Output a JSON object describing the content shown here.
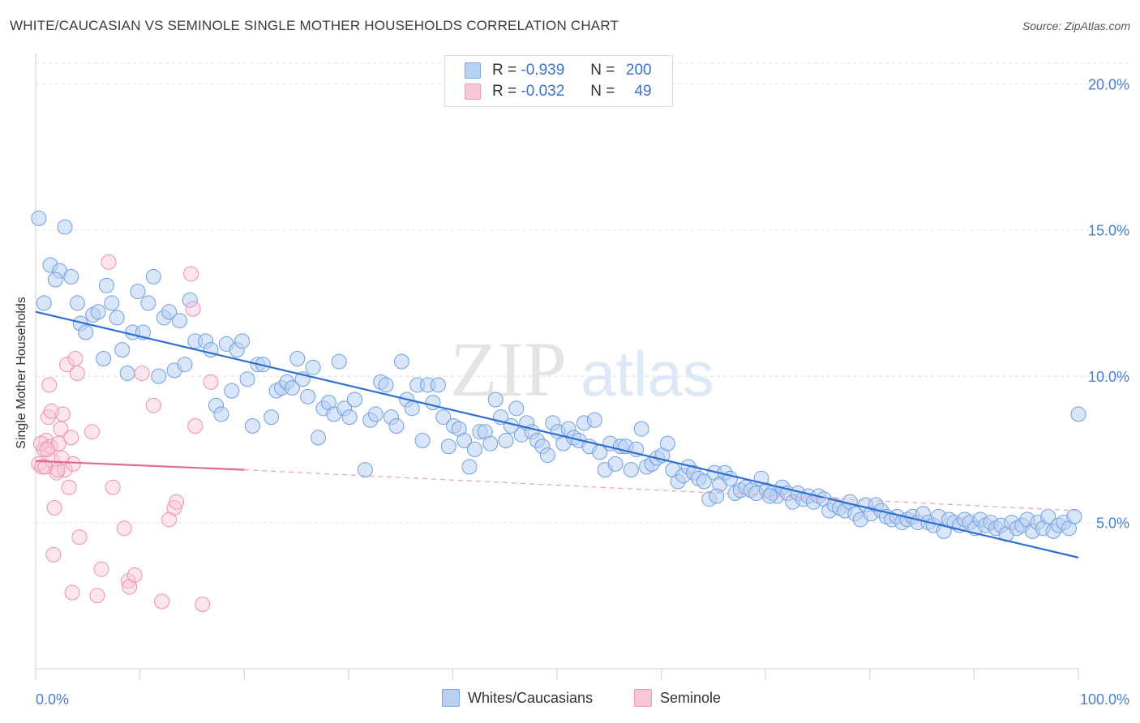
{
  "title": "WHITE/CAUCASIAN VS SEMINOLE SINGLE MOTHER HOUSEHOLDS CORRELATION CHART",
  "source": "Source: ZipAtlas.com",
  "watermark": {
    "part1": "ZIP",
    "part2": "atlas"
  },
  "legend": {
    "rows": [
      {
        "r_label": "R =",
        "r_value": "-0.939",
        "n_label": "N =",
        "n_value": "200",
        "color": "#a9c6f0"
      },
      {
        "r_label": "R =",
        "r_value": "-0.032",
        "n_label": "N =",
        "n_value": "49",
        "color": "#f6b8cc"
      }
    ]
  },
  "bottom_legend": [
    {
      "label": "Whites/Caucasians",
      "color": "#b9d0f2"
    },
    {
      "label": "Seminole",
      "color": "#f8c6d6"
    }
  ],
  "chart_data": {
    "type": "scatter",
    "title": "WHITE/CAUCASIAN VS SEMINOLE SINGLE MOTHER HOUSEHOLDS CORRELATION CHART",
    "xlabel": "",
    "ylabel": "Single Mother Households",
    "xlim": [
      0,
      100
    ],
    "ylim": [
      0,
      20.7
    ],
    "x_tick_labels": [
      "0.0%",
      "100.0%"
    ],
    "y_ticks": [
      5,
      10,
      15,
      20
    ],
    "y_tick_labels": [
      "5.0%",
      "10.0%",
      "15.0%",
      "20.0%"
    ],
    "grid": "horizontal dashed",
    "legend_position": "top-center",
    "series": [
      {
        "name": "Whites/Caucasians",
        "color": "#6f9fe0",
        "fill": "#b9d0f2",
        "trend": {
          "x": [
            0,
            100
          ],
          "y": [
            12.2,
            3.8
          ]
        },
        "points": [
          [
            0.3,
            15.4
          ],
          [
            2.8,
            15.1
          ],
          [
            1.4,
            13.8
          ],
          [
            2.3,
            13.6
          ],
          [
            3.4,
            13.4
          ],
          [
            1.9,
            13.3
          ],
          [
            0.8,
            12.5
          ],
          [
            4.0,
            12.5
          ],
          [
            5.5,
            12.1
          ],
          [
            6.0,
            12.2
          ],
          [
            4.3,
            11.8
          ],
          [
            4.8,
            11.5
          ],
          [
            6.5,
            10.6
          ],
          [
            6.8,
            13.1
          ],
          [
            7.3,
            12.5
          ],
          [
            7.8,
            12.0
          ],
          [
            8.3,
            10.9
          ],
          [
            8.8,
            10.1
          ],
          [
            9.3,
            11.5
          ],
          [
            9.8,
            12.9
          ],
          [
            10.3,
            11.5
          ],
          [
            10.8,
            12.5
          ],
          [
            11.3,
            13.4
          ],
          [
            11.8,
            10.0
          ],
          [
            12.3,
            12.0
          ],
          [
            12.8,
            12.2
          ],
          [
            13.3,
            10.2
          ],
          [
            13.8,
            11.9
          ],
          [
            14.3,
            10.4
          ],
          [
            14.8,
            12.6
          ],
          [
            15.3,
            11.2
          ],
          [
            16.3,
            11.2
          ],
          [
            16.8,
            10.9
          ],
          [
            17.3,
            9.0
          ],
          [
            17.8,
            8.7
          ],
          [
            18.3,
            11.1
          ],
          [
            18.8,
            9.5
          ],
          [
            19.3,
            10.9
          ],
          [
            19.8,
            11.2
          ],
          [
            20.3,
            9.9
          ],
          [
            20.8,
            8.3
          ],
          [
            21.3,
            10.4
          ],
          [
            21.8,
            10.4
          ],
          [
            22.6,
            8.6
          ],
          [
            23.1,
            9.5
          ],
          [
            23.6,
            9.6
          ],
          [
            24.1,
            9.8
          ],
          [
            24.6,
            9.6
          ],
          [
            25.1,
            10.6
          ],
          [
            25.6,
            9.9
          ],
          [
            26.1,
            9.3
          ],
          [
            26.6,
            10.3
          ],
          [
            27.1,
            7.9
          ],
          [
            27.6,
            8.9
          ],
          [
            28.1,
            9.1
          ],
          [
            28.6,
            8.7
          ],
          [
            29.1,
            10.5
          ],
          [
            29.6,
            8.9
          ],
          [
            30.1,
            8.6
          ],
          [
            30.6,
            9.2
          ],
          [
            31.6,
            6.8
          ],
          [
            32.1,
            8.5
          ],
          [
            32.6,
            8.7
          ],
          [
            33.1,
            9.8
          ],
          [
            33.6,
            9.7
          ],
          [
            34.1,
            8.6
          ],
          [
            34.6,
            8.3
          ],
          [
            35.1,
            10.5
          ],
          [
            35.6,
            9.2
          ],
          [
            36.1,
            8.9
          ],
          [
            36.6,
            9.7
          ],
          [
            37.1,
            7.8
          ],
          [
            37.6,
            9.7
          ],
          [
            38.1,
            9.1
          ],
          [
            38.6,
            9.7
          ],
          [
            39.1,
            8.6
          ],
          [
            39.6,
            7.6
          ],
          [
            40.1,
            8.3
          ],
          [
            40.6,
            8.2
          ],
          [
            41.1,
            7.8
          ],
          [
            41.6,
            6.9
          ],
          [
            42.1,
            7.5
          ],
          [
            42.6,
            8.1
          ],
          [
            43.1,
            8.1
          ],
          [
            43.6,
            7.7
          ],
          [
            44.1,
            9.2
          ],
          [
            44.6,
            8.6
          ],
          [
            45.1,
            7.8
          ],
          [
            45.6,
            8.3
          ],
          [
            46.1,
            8.9
          ],
          [
            46.6,
            8.0
          ],
          [
            47.1,
            8.4
          ],
          [
            47.6,
            8.1
          ],
          [
            48.1,
            7.8
          ],
          [
            48.6,
            7.6
          ],
          [
            49.1,
            7.3
          ],
          [
            49.6,
            8.4
          ],
          [
            50.1,
            8.1
          ],
          [
            50.6,
            7.7
          ],
          [
            51.1,
            8.2
          ],
          [
            51.6,
            7.9
          ],
          [
            52.1,
            7.8
          ],
          [
            52.6,
            8.4
          ],
          [
            53.1,
            7.6
          ],
          [
            53.6,
            8.5
          ],
          [
            54.1,
            7.4
          ],
          [
            54.6,
            6.8
          ],
          [
            55.1,
            7.7
          ],
          [
            55.6,
            7.0
          ],
          [
            56.1,
            7.6
          ],
          [
            56.6,
            7.6
          ],
          [
            57.1,
            6.8
          ],
          [
            57.6,
            7.5
          ],
          [
            58.1,
            8.2
          ],
          [
            58.6,
            6.9
          ],
          [
            59.1,
            7.0
          ],
          [
            59.6,
            7.2
          ],
          [
            60.1,
            7.3
          ],
          [
            60.6,
            7.7
          ],
          [
            61.1,
            6.8
          ],
          [
            61.6,
            6.4
          ],
          [
            62.1,
            6.6
          ],
          [
            62.6,
            6.9
          ],
          [
            63.1,
            6.7
          ],
          [
            63.6,
            6.5
          ],
          [
            64.1,
            6.4
          ],
          [
            64.6,
            5.8
          ],
          [
            65.1,
            6.7
          ],
          [
            65.6,
            6.3
          ],
          [
            66.1,
            6.7
          ],
          [
            66.6,
            6.5
          ],
          [
            67.1,
            6.0
          ],
          [
            67.6,
            6.1
          ],
          [
            68.1,
            6.2
          ],
          [
            68.6,
            6.1
          ],
          [
            69.1,
            6.0
          ],
          [
            69.6,
            6.5
          ],
          [
            70.1,
            6.1
          ],
          [
            70.6,
            6.0
          ],
          [
            71.1,
            5.9
          ],
          [
            71.6,
            6.2
          ],
          [
            72.1,
            6.0
          ],
          [
            72.6,
            5.7
          ],
          [
            73.1,
            6.0
          ],
          [
            73.6,
            5.8
          ],
          [
            74.1,
            5.9
          ],
          [
            74.6,
            5.7
          ],
          [
            75.1,
            5.9
          ],
          [
            75.6,
            5.8
          ],
          [
            76.1,
            5.4
          ],
          [
            76.6,
            5.6
          ],
          [
            77.1,
            5.5
          ],
          [
            77.6,
            5.4
          ],
          [
            78.1,
            5.7
          ],
          [
            78.6,
            5.3
          ],
          [
            79.1,
            5.1
          ],
          [
            79.6,
            5.6
          ],
          [
            80.1,
            5.3
          ],
          [
            80.6,
            5.6
          ],
          [
            81.1,
            5.4
          ],
          [
            81.6,
            5.2
          ],
          [
            82.1,
            5.1
          ],
          [
            82.6,
            5.2
          ],
          [
            83.1,
            5.0
          ],
          [
            83.6,
            5.1
          ],
          [
            84.1,
            5.2
          ],
          [
            84.6,
            5.0
          ],
          [
            85.1,
            5.3
          ],
          [
            85.6,
            5.0
          ],
          [
            86.1,
            4.9
          ],
          [
            86.6,
            5.2
          ],
          [
            87.1,
            4.7
          ],
          [
            87.6,
            5.1
          ],
          [
            88.1,
            5.0
          ],
          [
            88.6,
            4.9
          ],
          [
            89.1,
            5.1
          ],
          [
            89.6,
            5.0
          ],
          [
            90.1,
            4.8
          ],
          [
            90.6,
            5.1
          ],
          [
            91.1,
            4.9
          ],
          [
            91.6,
            5.0
          ],
          [
            92.1,
            4.8
          ],
          [
            92.6,
            4.9
          ],
          [
            93.1,
            4.6
          ],
          [
            93.6,
            5.0
          ],
          [
            94.1,
            4.8
          ],
          [
            94.6,
            4.9
          ],
          [
            95.1,
            5.1
          ],
          [
            95.6,
            4.7
          ],
          [
            96.1,
            5.0
          ],
          [
            96.6,
            4.8
          ],
          [
            97.1,
            5.2
          ],
          [
            97.6,
            4.7
          ],
          [
            98.1,
            4.9
          ],
          [
            98.6,
            5.0
          ],
          [
            99.1,
            4.8
          ],
          [
            99.6,
            5.2
          ],
          [
            100.0,
            8.7
          ],
          [
            70.4,
            5.9
          ],
          [
            65.3,
            5.9
          ]
        ]
      },
      {
        "name": "Seminole",
        "color": "#ee8fae",
        "fill": "#f8c6d6",
        "trend": {
          "x": [
            0,
            20
          ],
          "y": [
            7.1,
            6.8
          ]
        },
        "trend_dashed": {
          "x": [
            20,
            100
          ],
          "y": [
            6.8,
            5.4
          ]
        },
        "points": [
          [
            0.3,
            7.0
          ],
          [
            0.6,
            6.9
          ],
          [
            0.8,
            7.5
          ],
          [
            1.0,
            7.8
          ],
          [
            1.2,
            8.6
          ],
          [
            1.4,
            7.6
          ],
          [
            1.6,
            7.1
          ],
          [
            1.8,
            5.5
          ],
          [
            2.0,
            6.7
          ],
          [
            2.2,
            7.7
          ],
          [
            2.4,
            8.2
          ],
          [
            2.6,
            8.7
          ],
          [
            2.8,
            6.8
          ],
          [
            3.0,
            10.4
          ],
          [
            3.2,
            6.2
          ],
          [
            3.4,
            7.9
          ],
          [
            3.6,
            7.0
          ],
          [
            3.8,
            10.6
          ],
          [
            4.0,
            10.1
          ],
          [
            4.2,
            4.5
          ],
          [
            1.3,
            9.7
          ],
          [
            1.5,
            8.8
          ],
          [
            1.7,
            3.9
          ],
          [
            3.5,
            2.6
          ],
          [
            0.5,
            7.7
          ],
          [
            0.9,
            6.9
          ],
          [
            2.5,
            7.2
          ],
          [
            5.4,
            8.1
          ],
          [
            5.9,
            2.5
          ],
          [
            6.3,
            3.4
          ],
          [
            7.4,
            6.2
          ],
          [
            8.5,
            4.8
          ],
          [
            8.9,
            3.0
          ],
          [
            9.0,
            2.8
          ],
          [
            9.5,
            3.2
          ],
          [
            10.2,
            10.1
          ],
          [
            11.3,
            9.0
          ],
          [
            12.1,
            2.3
          ],
          [
            12.8,
            5.1
          ],
          [
            13.3,
            5.5
          ],
          [
            13.5,
            5.7
          ],
          [
            14.9,
            13.5
          ],
          [
            15.1,
            12.3
          ],
          [
            15.3,
            8.3
          ],
          [
            16.0,
            2.2
          ],
          [
            16.8,
            9.8
          ],
          [
            7.0,
            13.9
          ],
          [
            1.1,
            7.5
          ],
          [
            2.1,
            6.8
          ]
        ]
      }
    ]
  }
}
